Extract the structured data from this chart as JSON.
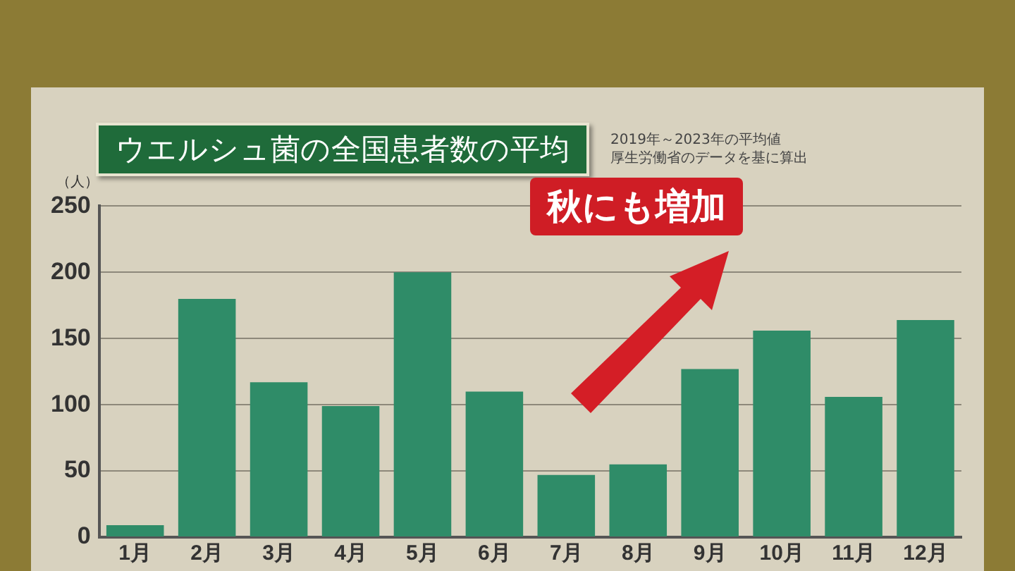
{
  "chart_data": {
    "type": "bar",
    "title": "ウエルシュ菌の全国患者数の平均",
    "ylabel": "（人）",
    "categories": [
      "1月",
      "2月",
      "3月",
      "4月",
      "5月",
      "6月",
      "7月",
      "8月",
      "9月",
      "10月",
      "11月",
      "12月"
    ],
    "values": [
      9,
      180,
      117,
      99,
      200,
      110,
      47,
      55,
      127,
      156,
      106,
      164
    ],
    "color": "#2f8c68",
    "ylim": [
      0,
      250
    ],
    "yticks": [
      0,
      50,
      100,
      150,
      200,
      250
    ],
    "grid": "y",
    "legend": false,
    "annotations": [
      "2019年～2023年の平均値",
      "厚生労働省のデータを基に算出",
      "秋にも増加"
    ]
  }
}
